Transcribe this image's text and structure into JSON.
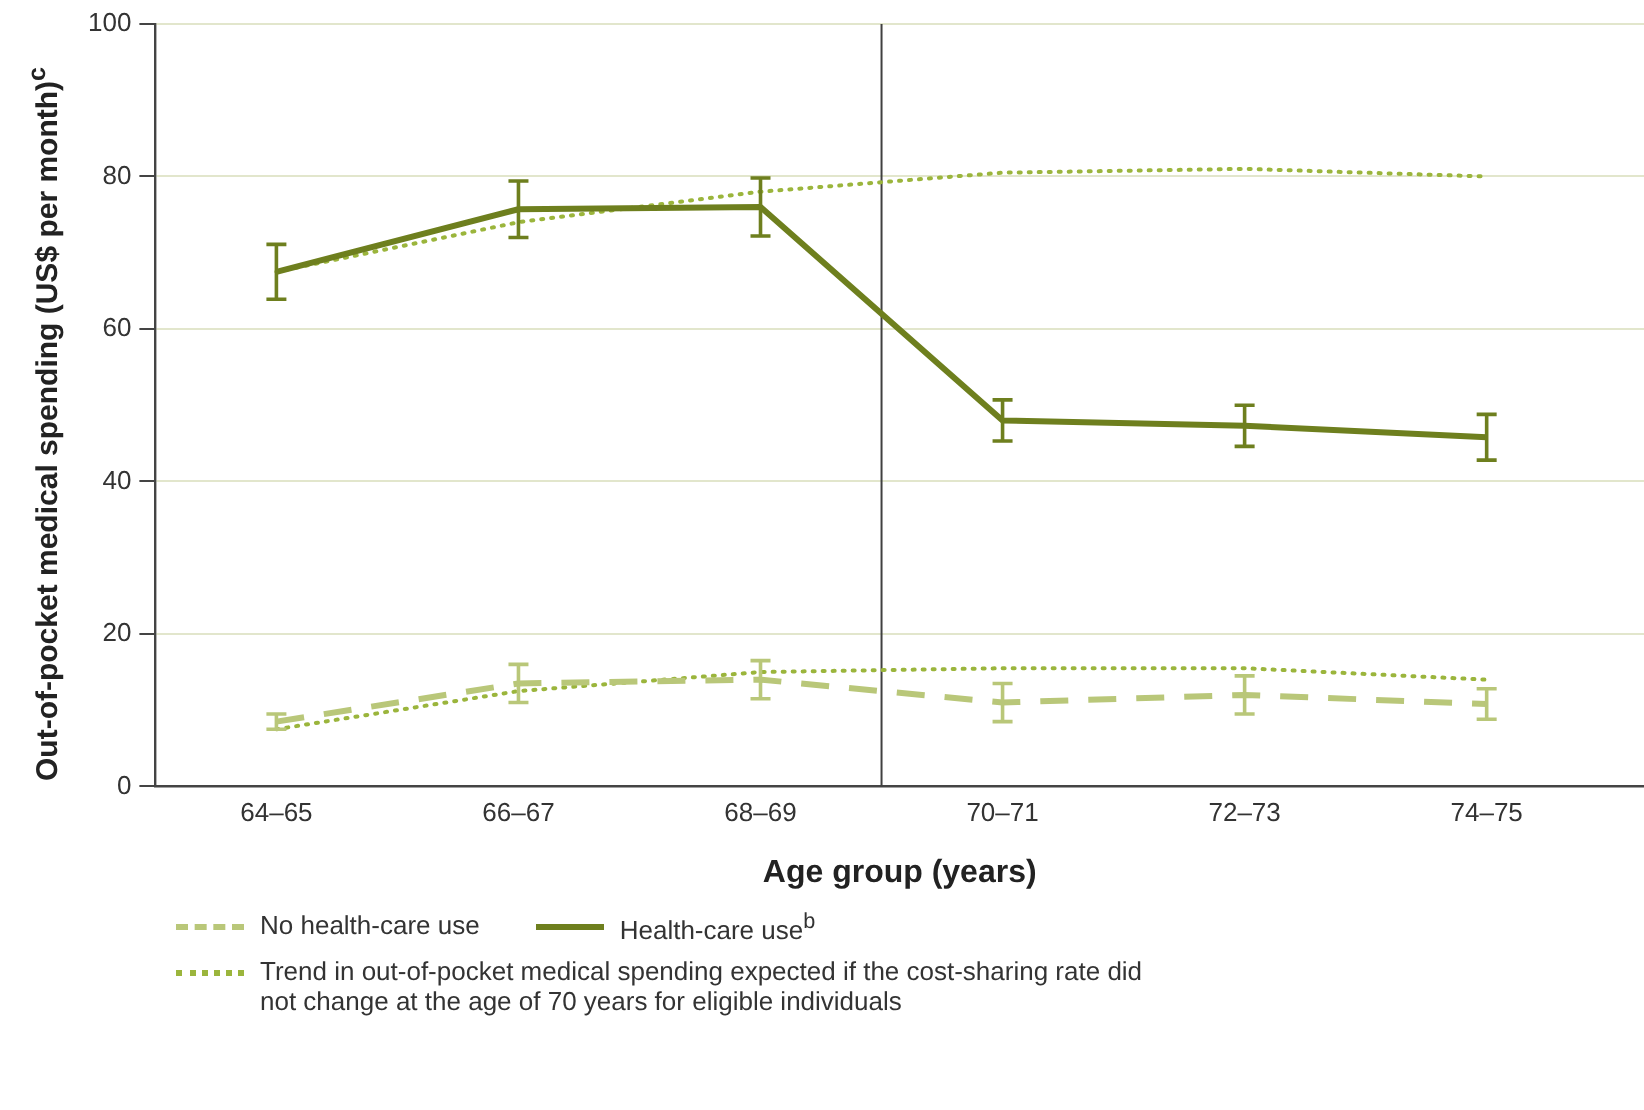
{
  "chart_data": {
    "type": "line",
    "xlabel": "Age group (years)",
    "ylabel": "Out-of-pocket medical spending (US$ per month)$^{c}$",
    "categories": [
      "64–65",
      "66–67",
      "68–69",
      "70–71",
      "72–73",
      "74–75"
    ],
    "ylim": [
      0,
      100
    ],
    "yticks": [
      0,
      20,
      40,
      60,
      80,
      100
    ],
    "ref_lines": [
      {
        "axis": "x",
        "value": "70–71",
        "color": "#404040"
      }
    ],
    "grid": "y",
    "legend": "bottom",
    "marker": "none",
    "series": [
      {
        "name": "No health-care use",
        "color": "#b9c779",
        "line_style": "dashed",
        "values": [
          8.5,
          13.5,
          14,
          11,
          12,
          10.8
        ],
        "errors": [
          1,
          2.5,
          2.5,
          2.5,
          2.5,
          2
        ]
      },
      {
        "name": "Health-care use$^{b}$",
        "color": "#6e7f1e",
        "line_style": "solid",
        "values": [
          67.5,
          75.7,
          76,
          48,
          47.3,
          45.8
        ],
        "errors": [
          3.6,
          3.7,
          3.8,
          2.7,
          2.7,
          3
        ]
      },
      {
        "name": "Trend in out-of-pocket medical spending expected if the cost-sharing rate did not change at the age of 70 years for eligible individuals",
        "color": "#9bb53c",
        "line_style": "dotted",
        "values": [
          67.5,
          74,
          78,
          80.5,
          81,
          80
        ]
      },
      {
        "color": "#9bb53c",
        "line_style": "dotted",
        "values": [
          7.5,
          12.5,
          15,
          15.5,
          15.5,
          14
        ]
      }
    ]
  }
}
